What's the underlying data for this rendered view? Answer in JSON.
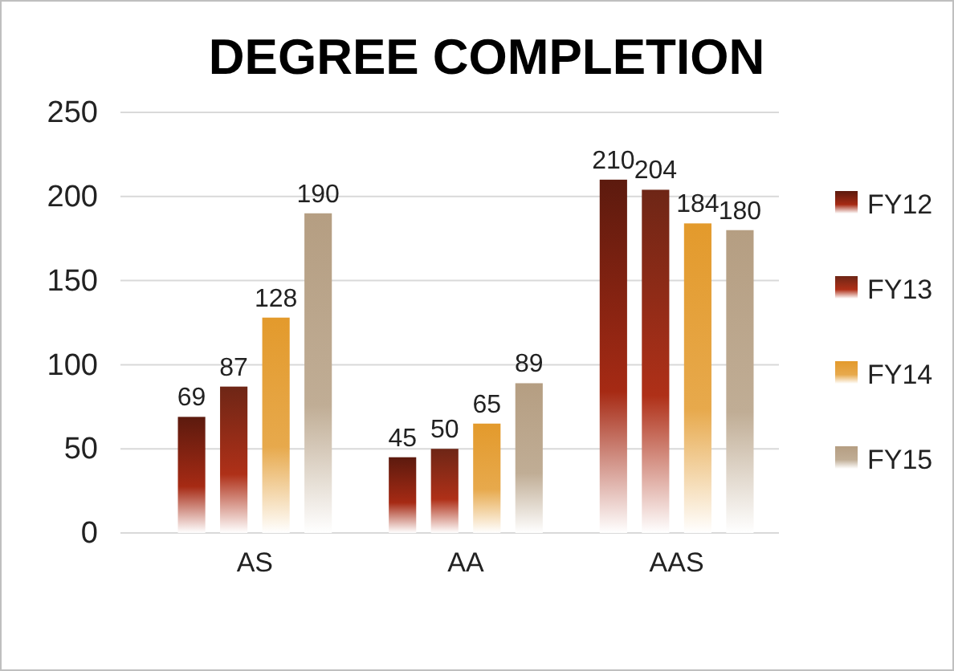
{
  "chart_data": {
    "type": "bar",
    "title": "DEGREE COMPLETION",
    "categories": [
      "AS",
      "AA",
      "AAS"
    ],
    "series": [
      {
        "name": "FY12",
        "color": "#5c1a0e",
        "values": [
          69,
          45,
          210
        ]
      },
      {
        "name": "FY13",
        "color": "#6e2616",
        "values": [
          87,
          50,
          204
        ]
      },
      {
        "name": "FY14",
        "color": "#e39a2c",
        "values": [
          128,
          65,
          184
        ]
      },
      {
        "name": "FY15",
        "color": "#b59e82",
        "values": [
          190,
          89,
          180
        ]
      }
    ],
    "ylim": [
      0,
      250
    ],
    "yticks": [
      0,
      50,
      100,
      150,
      200,
      250
    ],
    "grid": "y",
    "legend": "right",
    "data_labels": true
  }
}
